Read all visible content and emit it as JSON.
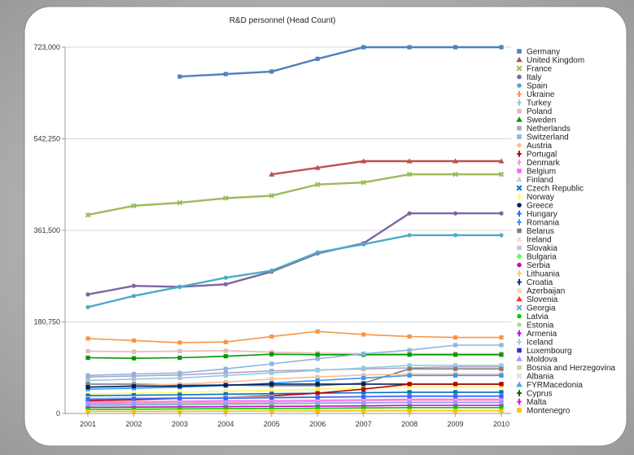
{
  "chart_data": {
    "type": "line",
    "title": "R&D personnel (Head Count)",
    "xlabel": "",
    "ylabel": "",
    "x": [
      2001,
      2002,
      2003,
      2004,
      2005,
      2006,
      2007,
      2008,
      2009,
      2010
    ],
    "ylim": [
      0,
      723000
    ],
    "yticks": [
      0,
      180750,
      361500,
      542250,
      723000
    ],
    "ytick_labels": [
      "0",
      "180,750",
      "361,500",
      "542,250",
      "723,000"
    ],
    "grid": "horizontal",
    "legend_position": "right",
    "series": [
      {
        "name": "Germany",
        "color": "#4f81bd",
        "marker": "square",
        "values": [
          null,
          null,
          665000,
          670000,
          675000,
          700000,
          723000,
          723000,
          723000,
          723000
        ]
      },
      {
        "name": "United Kingdom",
        "color": "#c0504d",
        "marker": "triangle",
        "values": [
          null,
          null,
          null,
          null,
          472000,
          485000,
          498000,
          498000,
          498000,
          498000
        ]
      },
      {
        "name": "France",
        "color": "#9bbb59",
        "marker": "x",
        "values": [
          392000,
          410000,
          416000,
          425000,
          430000,
          452000,
          456000,
          472000,
          472000,
          472000
        ]
      },
      {
        "name": "Italy",
        "color": "#8064a2",
        "marker": "circle",
        "values": [
          235000,
          252000,
          250000,
          255000,
          280000,
          316000,
          336000,
          395000,
          395000,
          395000
        ]
      },
      {
        "name": "Spain",
        "color": "#4bacc6",
        "marker": "circle",
        "values": [
          210000,
          232000,
          250000,
          268000,
          282000,
          318000,
          334000,
          352000,
          352000,
          352000
        ]
      },
      {
        "name": "Ukraine",
        "color": "#f79646",
        "marker": "plus",
        "values": [
          null,
          null,
          null,
          null,
          null,
          null,
          null,
          null,
          null,
          null
        ]
      },
      {
        "name": "Turkey",
        "color": "#93cddd",
        "marker": "plus",
        "values": [
          null,
          null,
          null,
          null,
          null,
          null,
          null,
          null,
          null,
          null
        ]
      },
      {
        "name": "Poland",
        "color": "#e6b9b8",
        "marker": "square",
        "values": [
          null,
          null,
          null,
          null,
          null,
          null,
          null,
          null,
          null,
          null
        ]
      },
      {
        "name": "Sweden",
        "color": "#009900",
        "marker": "triangle",
        "values": [
          null,
          null,
          null,
          null,
          null,
          null,
          null,
          null,
          null,
          null
        ]
      },
      {
        "name": "Netherlands",
        "color": "#b3a2c7",
        "marker": "square",
        "values": [
          null,
          null,
          null,
          null,
          null,
          null,
          null,
          null,
          null,
          null
        ]
      },
      {
        "name": "Switzerland",
        "color": "#8eb4e3",
        "marker": "square",
        "values": [
          null,
          null,
          null,
          null,
          null,
          null,
          null,
          null,
          null,
          null
        ]
      },
      {
        "name": "Austria",
        "color": "#fac090",
        "marker": "circle",
        "values": [
          null,
          null,
          null,
          null,
          null,
          null,
          null,
          null,
          null,
          null
        ]
      },
      {
        "name": "Portugal",
        "color": "#c00000",
        "marker": "plus",
        "values": [
          null,
          null,
          null,
          null,
          null,
          null,
          null,
          null,
          null,
          null
        ]
      },
      {
        "name": "Denmark",
        "color": "#ff99cc",
        "marker": "plus",
        "values": [
          null,
          null,
          null,
          null,
          null,
          null,
          null,
          null,
          null,
          null
        ]
      },
      {
        "name": "Belgium",
        "color": "#ff66ff",
        "marker": "square",
        "values": [
          null,
          null,
          null,
          null,
          null,
          null,
          null,
          null,
          null,
          null
        ]
      },
      {
        "name": "Finland",
        "color": "#cccccc",
        "marker": "triangle",
        "values": [
          null,
          null,
          null,
          null,
          null,
          null,
          null,
          null,
          null,
          null
        ]
      },
      {
        "name": "Czech Republic",
        "color": "#0070c0",
        "marker": "x",
        "values": [
          null,
          null,
          null,
          null,
          null,
          null,
          null,
          null,
          null,
          null
        ]
      },
      {
        "name": "Norway",
        "color": "#ffff66",
        "marker": "plus",
        "values": [
          null,
          null,
          null,
          null,
          null,
          null,
          null,
          null,
          null,
          null
        ]
      },
      {
        "name": "Greece",
        "color": "#002060",
        "marker": "circle",
        "values": [
          null,
          null,
          null,
          null,
          null,
          null,
          null,
          null,
          null,
          null
        ]
      },
      {
        "name": "Hungary",
        "color": "#3366ff",
        "marker": "plus",
        "values": [
          null,
          null,
          null,
          null,
          null,
          null,
          null,
          null,
          null,
          null
        ]
      },
      {
        "name": "Romania",
        "color": "#3399ff",
        "marker": "plus",
        "values": [
          null,
          null,
          null,
          null,
          null,
          null,
          null,
          null,
          null,
          null
        ]
      },
      {
        "name": "Belarus",
        "color": "#7f7f7f",
        "marker": "square",
        "values": [
          null,
          null,
          null,
          null,
          null,
          null,
          null,
          null,
          null,
          null
        ]
      },
      {
        "name": "Ireland",
        "color": "#f2dcdb",
        "marker": "triangle",
        "values": [
          null,
          null,
          null,
          null,
          null,
          null,
          null,
          null,
          null,
          null
        ]
      },
      {
        "name": "Slovakia",
        "color": "#ccc0da",
        "marker": "square",
        "values": [
          null,
          null,
          null,
          null,
          null,
          null,
          null,
          null,
          null,
          null
        ]
      },
      {
        "name": "Bulgaria",
        "color": "#66ff66",
        "marker": "diamond",
        "values": [
          null,
          null,
          null,
          null,
          null,
          null,
          null,
          null,
          null,
          null
        ]
      },
      {
        "name": "Serbia",
        "color": "#cc00cc",
        "marker": "circle",
        "values": [
          null,
          null,
          null,
          null,
          null,
          null,
          null,
          null,
          null,
          null
        ]
      },
      {
        "name": "Lithuania",
        "color": "#ffcc66",
        "marker": "plus",
        "values": [
          null,
          null,
          null,
          null,
          null,
          null,
          null,
          null,
          null,
          null
        ]
      },
      {
        "name": "Croatia",
        "color": "#003399",
        "marker": "plus",
        "values": [
          null,
          null,
          null,
          null,
          null,
          null,
          null,
          null,
          null,
          null
        ]
      },
      {
        "name": "Azerbaijan",
        "color": "#ffd8b0",
        "marker": "square",
        "values": [
          null,
          null,
          null,
          null,
          null,
          null,
          null,
          null,
          null,
          null
        ]
      },
      {
        "name": "Slovenia",
        "color": "#ff3333",
        "marker": "triangle",
        "values": [
          null,
          null,
          null,
          null,
          null,
          null,
          null,
          null,
          null,
          null
        ]
      },
      {
        "name": "Georgia",
        "color": "#66a3c2",
        "marker": "x",
        "values": [
          null,
          null,
          null,
          null,
          null,
          null,
          null,
          null,
          null,
          null
        ]
      },
      {
        "name": "Latvia",
        "color": "#00cc00",
        "marker": "circle",
        "values": [
          null,
          null,
          null,
          null,
          null,
          null,
          null,
          null,
          null,
          null
        ]
      },
      {
        "name": "Estonia",
        "color": "#99e699",
        "marker": "circle",
        "values": [
          null,
          null,
          null,
          null,
          null,
          null,
          null,
          null,
          null,
          null
        ]
      },
      {
        "name": "Armenia",
        "color": "#cc00ff",
        "marker": "plus",
        "values": [
          null,
          null,
          null,
          null,
          null,
          null,
          null,
          null,
          null,
          null
        ]
      },
      {
        "name": "Iceland",
        "color": "#99ccff",
        "marker": "plus",
        "values": [
          null,
          null,
          null,
          null,
          null,
          null,
          null,
          null,
          null,
          null
        ]
      },
      {
        "name": "Luxembourg",
        "color": "#3333cc",
        "marker": "square",
        "values": [
          null,
          null,
          null,
          null,
          null,
          null,
          null,
          null,
          null,
          null
        ]
      },
      {
        "name": "Moldova",
        "color": "#9999ff",
        "marker": "triangle",
        "values": [
          null,
          null,
          null,
          null,
          null,
          null,
          null,
          null,
          null,
          null
        ]
      },
      {
        "name": "Bosnia and Herzegovina",
        "color": "#c4d79b",
        "marker": "square",
        "values": [
          null,
          null,
          null,
          null,
          null,
          null,
          null,
          null,
          null,
          null
        ]
      },
      {
        "name": "Albania",
        "color": "#d9d9d9",
        "marker": "x",
        "values": [
          null,
          null,
          null,
          null,
          null,
          null,
          null,
          null,
          null,
          null
        ]
      },
      {
        "name": "FYRMacedonia",
        "color": "#4bacc6",
        "marker": "triangle",
        "values": [
          null,
          null,
          null,
          null,
          null,
          null,
          null,
          null,
          null,
          null
        ]
      },
      {
        "name": "Cyprus",
        "color": "#006600",
        "marker": "plus",
        "values": [
          null,
          null,
          null,
          null,
          null,
          null,
          null,
          null,
          null,
          null
        ]
      },
      {
        "name": "Malta",
        "color": "#ff00ff",
        "marker": "plus",
        "values": [
          null,
          null,
          null,
          null,
          null,
          null,
          null,
          null,
          null,
          null
        ]
      },
      {
        "name": "Montenegro",
        "color": "#ffc000",
        "marker": "square",
        "values": [
          null,
          null,
          null,
          null,
          null,
          null,
          null,
          null,
          null,
          null
        ]
      }
    ],
    "lower_series": [
      {
        "color": "#f79646",
        "values": [
          148000,
          144000,
          140000,
          141000,
          152000,
          162000,
          156000,
          152000,
          150000,
          150000
        ]
      },
      {
        "color": "#e6b9b8",
        "values": [
          123000,
          122000,
          123000,
          124000,
          121000,
          119000,
          118000,
          118000,
          118000,
          118000
        ]
      },
      {
        "color": "#009900",
        "values": [
          110000,
          109000,
          110000,
          113000,
          117000,
          116000,
          116000,
          116000,
          116000,
          116000
        ]
      },
      {
        "color": "#8eb4e3",
        "values": [
          75000,
          78000,
          80000,
          88000,
          98000,
          108000,
          118000,
          125000,
          135000,
          135000
        ]
      },
      {
        "color": "#b3a2c7",
        "values": [
          72000,
          74000,
          76000,
          80000,
          84000,
          86000,
          88000,
          90000,
          92000,
          92000
        ]
      },
      {
        "color": "#93cddd",
        "values": [
          65000,
          68000,
          70000,
          75000,
          80000,
          85000,
          90000,
          95000,
          95000,
          95000
        ]
      },
      {
        "color": "#7f7f7f",
        "values": [
          58000,
          58000,
          56000,
          56000,
          55000,
          55000,
          60000,
          88000,
          88000,
          88000
        ]
      },
      {
        "color": "#fac090",
        "values": [
          52000,
          55000,
          58000,
          62000,
          68000,
          72000,
          76000,
          78000,
          78000,
          78000
        ]
      },
      {
        "color": "#3399ff",
        "values": [
          48000,
          50000,
          52000,
          55000,
          60000,
          65000,
          70000,
          75000,
          75000,
          75000
        ]
      },
      {
        "color": "#ffff66",
        "values": [
          38000,
          40000,
          42000,
          44000,
          46000,
          48000,
          50000,
          52000,
          52000,
          52000
        ]
      },
      {
        "color": "#0070c0",
        "values": [
          35000,
          36000,
          37000,
          38000,
          39000,
          40000,
          41000,
          42000,
          42000,
          42000
        ]
      },
      {
        "color": "#002060",
        "values": [
          52000,
          54000,
          54000,
          56000,
          58000,
          58000,
          58000,
          58000,
          58000,
          58000
        ]
      },
      {
        "color": "#c00000",
        "values": [
          25000,
          27000,
          30000,
          32000,
          35000,
          40000,
          48000,
          58000,
          58000,
          58000
        ]
      },
      {
        "color": "#ff66ff",
        "values": [
          22000,
          23000,
          24000,
          25000,
          25000,
          26000,
          27000,
          28000,
          28000,
          28000
        ]
      },
      {
        "color": "#cccccc",
        "values": [
          30000,
          31000,
          31000,
          32000,
          33000,
          33000,
          34000,
          35000,
          35000,
          35000
        ]
      },
      {
        "color": "#66ff66",
        "values": [
          15000,
          16000,
          17000,
          18000,
          19000,
          20000,
          21000,
          22000,
          22000,
          22000
        ]
      },
      {
        "color": "#cc00cc",
        "values": [
          12000,
          12500,
          13000,
          13500,
          14000,
          14500,
          15000,
          16000,
          16000,
          16000
        ]
      },
      {
        "color": "#ff99cc",
        "values": [
          20000,
          21000,
          22000,
          22000,
          23000,
          24000,
          25000,
          26000,
          26000,
          26000
        ]
      },
      {
        "color": "#00cc00",
        "values": [
          8000,
          8500,
          9000,
          9500,
          10000,
          10500,
          11000,
          11500,
          11500,
          11500
        ]
      },
      {
        "color": "#ffc000",
        "values": [
          4000,
          4200,
          4400,
          4600,
          4800,
          5000,
          5200,
          5400,
          5400,
          5400
        ]
      },
      {
        "color": "#9999ff",
        "values": [
          18000,
          18500,
          19000,
          19500,
          20000,
          20500,
          21000,
          21500,
          21500,
          21500
        ]
      },
      {
        "color": "#3366ff",
        "values": [
          28000,
          29000,
          30000,
          30000,
          31000,
          32000,
          33000,
          34000,
          34000,
          34000
        ]
      }
    ]
  }
}
